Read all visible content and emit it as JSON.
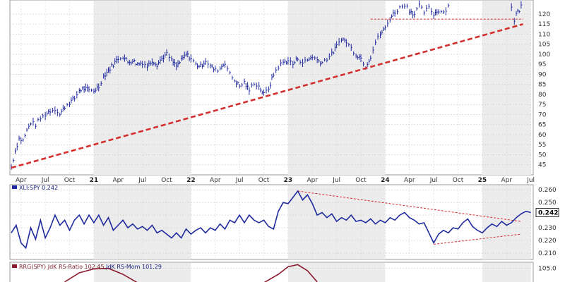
{
  "chart_data": [
    {
      "type": "ohlc",
      "panel": "price",
      "title": "",
      "x_start": "2020-04",
      "x_end": "2025-07",
      "y_ticks": [
        45,
        50,
        55,
        60,
        65,
        70,
        75,
        80,
        85,
        90,
        95,
        100,
        105,
        110,
        115,
        120
      ],
      "ylim": [
        40,
        127
      ],
      "x_tick_labels": [
        {
          "t": 0.1,
          "label": "Apr"
        },
        {
          "t": 0.35,
          "label": "Jul"
        },
        {
          "t": 0.6,
          "label": "Oct"
        },
        {
          "t": 0.85,
          "label": "21",
          "year": true
        },
        {
          "t": 1.1,
          "label": "Apr"
        },
        {
          "t": 1.35,
          "label": "Jul"
        },
        {
          "t": 1.6,
          "label": "Oct"
        },
        {
          "t": 1.85,
          "label": "22",
          "year": true
        },
        {
          "t": 2.1,
          "label": "Apr"
        },
        {
          "t": 2.35,
          "label": "Jul"
        },
        {
          "t": 2.6,
          "label": "Oct"
        },
        {
          "t": 2.85,
          "label": "23",
          "year": true
        },
        {
          "t": 3.1,
          "label": "Apr"
        },
        {
          "t": 3.35,
          "label": "Jul"
        },
        {
          "t": 3.6,
          "label": "Oct"
        },
        {
          "t": 3.85,
          "label": "24",
          "year": true
        },
        {
          "t": 4.1,
          "label": "Apr"
        },
        {
          "t": 4.35,
          "label": "Jul"
        },
        {
          "t": 4.6,
          "label": "Oct"
        },
        {
          "t": 4.85,
          "label": "25",
          "year": true
        },
        {
          "t": 5.1,
          "label": "Apr"
        },
        {
          "t": 5.35,
          "label": "Jul"
        }
      ],
      "shaded_years": [
        [
          0.85,
          1.85
        ],
        [
          2.85,
          3.85
        ],
        [
          4.85,
          5.35
        ]
      ],
      "closes": [
        [
          0.0,
          44
        ],
        [
          0.04,
          52
        ],
        [
          0.08,
          58
        ],
        [
          0.12,
          57
        ],
        [
          0.16,
          62
        ],
        [
          0.2,
          66
        ],
        [
          0.25,
          65
        ],
        [
          0.3,
          68
        ],
        [
          0.35,
          70
        ],
        [
          0.4,
          72
        ],
        [
          0.45,
          73
        ],
        [
          0.5,
          70
        ],
        [
          0.55,
          74
        ],
        [
          0.6,
          76
        ],
        [
          0.65,
          78
        ],
        [
          0.7,
          82
        ],
        [
          0.75,
          83
        ],
        [
          0.8,
          82
        ],
        [
          0.85,
          82
        ],
        [
          0.9,
          84
        ],
        [
          0.95,
          89
        ],
        [
          1.0,
          92
        ],
        [
          1.05,
          95
        ],
        [
          1.1,
          98
        ],
        [
          1.15,
          99
        ],
        [
          1.2,
          96
        ],
        [
          1.25,
          97
        ],
        [
          1.3,
          95
        ],
        [
          1.35,
          96
        ],
        [
          1.4,
          94
        ],
        [
          1.45,
          97
        ],
        [
          1.5,
          95
        ],
        [
          1.55,
          98
        ],
        [
          1.6,
          100
        ],
        [
          1.65,
          97
        ],
        [
          1.7,
          94
        ],
        [
          1.75,
          97
        ],
        [
          1.8,
          100
        ],
        [
          1.85,
          98
        ],
        [
          1.9,
          95
        ],
        [
          1.95,
          94
        ],
        [
          2.0,
          97
        ],
        [
          2.05,
          94
        ],
        [
          2.1,
          92
        ],
        [
          2.15,
          93
        ],
        [
          2.2,
          96
        ],
        [
          2.25,
          90
        ],
        [
          2.3,
          87
        ],
        [
          2.35,
          84
        ],
        [
          2.4,
          86
        ],
        [
          2.45,
          82
        ],
        [
          2.5,
          86
        ],
        [
          2.55,
          84
        ],
        [
          2.6,
          80
        ],
        [
          2.65,
          83
        ],
        [
          2.7,
          90
        ],
        [
          2.75,
          94
        ],
        [
          2.8,
          96
        ],
        [
          2.85,
          97
        ],
        [
          2.9,
          95
        ],
        [
          2.95,
          98
        ],
        [
          3.0,
          96
        ],
        [
          3.05,
          97
        ],
        [
          3.1,
          99
        ],
        [
          3.15,
          97
        ],
        [
          3.2,
          96
        ],
        [
          3.25,
          98
        ],
        [
          3.3,
          100
        ],
        [
          3.35,
          104
        ],
        [
          3.4,
          108
        ],
        [
          3.45,
          106
        ],
        [
          3.5,
          103
        ],
        [
          3.55,
          100
        ],
        [
          3.6,
          98
        ],
        [
          3.65,
          94
        ],
        [
          3.7,
          99
        ],
        [
          3.75,
          106
        ],
        [
          3.8,
          110
        ],
        [
          3.85,
          113
        ],
        [
          3.9,
          118
        ],
        [
          3.95,
          121
        ],
        [
          4.0,
          123
        ],
        [
          4.05,
          125
        ],
        [
          4.1,
          122
        ],
        [
          4.15,
          120
        ],
        [
          4.2,
          124
        ],
        [
          4.25,
          121
        ],
        [
          4.3,
          123
        ],
        [
          4.35,
          120
        ],
        [
          4.4,
          122
        ],
        [
          4.45,
          121
        ],
        [
          4.5,
          124
        ]
      ],
      "closes_2025": [
        [
          5.15,
          124
        ],
        [
          5.18,
          117
        ],
        [
          5.2,
          120
        ],
        [
          5.23,
          122
        ],
        [
          5.25,
          124
        ]
      ],
      "trendline": {
        "from": [
          0.0,
          43.5
        ],
        "to": [
          5.27,
          115
        ],
        "color": "#d32f2f"
      },
      "horizontal_level": {
        "value": 117.5,
        "from": 3.7,
        "to": 5.27,
        "color": "#d32f2f"
      }
    },
    {
      "type": "line",
      "panel": "ratio",
      "series": [
        {
          "name": "XLI:SPY 0.242",
          "color": "#1f2a9e",
          "points": [
            [
              0.0,
              0.226
            ],
            [
              0.05,
              0.232
            ],
            [
              0.1,
              0.218
            ],
            [
              0.15,
              0.214
            ],
            [
              0.2,
              0.23
            ],
            [
              0.25,
              0.221
            ],
            [
              0.3,
              0.236
            ],
            [
              0.35,
              0.222
            ],
            [
              0.4,
              0.23
            ],
            [
              0.45,
              0.24
            ],
            [
              0.5,
              0.232
            ],
            [
              0.55,
              0.236
            ],
            [
              0.6,
              0.228
            ],
            [
              0.65,
              0.236
            ],
            [
              0.7,
              0.24
            ],
            [
              0.75,
              0.233
            ],
            [
              0.8,
              0.24
            ],
            [
              0.85,
              0.234
            ],
            [
              0.9,
              0.24
            ],
            [
              0.95,
              0.232
            ],
            [
              1.0,
              0.238
            ],
            [
              1.05,
              0.228
            ],
            [
              1.1,
              0.232
            ],
            [
              1.15,
              0.236
            ],
            [
              1.2,
              0.23
            ],
            [
              1.25,
              0.233
            ],
            [
              1.3,
              0.229
            ],
            [
              1.35,
              0.231
            ],
            [
              1.4,
              0.228
            ],
            [
              1.45,
              0.232
            ],
            [
              1.5,
              0.226
            ],
            [
              1.55,
              0.228
            ],
            [
              1.6,
              0.225
            ],
            [
              1.65,
              0.222
            ],
            [
              1.7,
              0.226
            ],
            [
              1.75,
              0.222
            ],
            [
              1.8,
              0.229
            ],
            [
              1.85,
              0.225
            ],
            [
              1.9,
              0.228
            ],
            [
              1.95,
              0.23
            ],
            [
              2.0,
              0.226
            ],
            [
              2.05,
              0.23
            ],
            [
              2.1,
              0.228
            ],
            [
              2.15,
              0.233
            ],
            [
              2.2,
              0.229
            ],
            [
              2.25,
              0.236
            ],
            [
              2.3,
              0.234
            ],
            [
              2.35,
              0.24
            ],
            [
              2.4,
              0.234
            ],
            [
              2.45,
              0.24
            ],
            [
              2.5,
              0.236
            ],
            [
              2.55,
              0.234
            ],
            [
              2.6,
              0.236
            ],
            [
              2.65,
              0.231
            ],
            [
              2.7,
              0.229
            ],
            [
              2.75,
              0.243
            ],
            [
              2.8,
              0.25
            ],
            [
              2.85,
              0.249
            ],
            [
              2.9,
              0.254
            ],
            [
              2.95,
              0.259
            ],
            [
              3.0,
              0.252
            ],
            [
              3.05,
              0.256
            ],
            [
              3.1,
              0.249
            ],
            [
              3.15,
              0.24
            ],
            [
              3.2,
              0.242
            ],
            [
              3.25,
              0.238
            ],
            [
              3.3,
              0.241
            ],
            [
              3.35,
              0.235
            ],
            [
              3.4,
              0.238
            ],
            [
              3.45,
              0.236
            ],
            [
              3.5,
              0.24
            ],
            [
              3.55,
              0.235
            ],
            [
              3.6,
              0.236
            ],
            [
              3.65,
              0.234
            ],
            [
              3.7,
              0.237
            ],
            [
              3.75,
              0.233
            ],
            [
              3.8,
              0.236
            ],
            [
              3.85,
              0.234
            ],
            [
              3.9,
              0.238
            ],
            [
              3.95,
              0.236
            ],
            [
              4.0,
              0.24
            ],
            [
              4.05,
              0.242
            ],
            [
              4.1,
              0.238
            ],
            [
              4.15,
              0.236
            ],
            [
              4.2,
              0.233
            ],
            [
              4.25,
              0.234
            ],
            [
              4.3,
              0.226
            ],
            [
              4.35,
              0.218
            ],
            [
              4.4,
              0.225
            ],
            [
              4.45,
              0.228
            ],
            [
              4.5,
              0.226
            ],
            [
              4.55,
              0.23
            ],
            [
              4.6,
              0.229
            ],
            [
              4.65,
              0.234
            ],
            [
              4.7,
              0.237
            ],
            [
              4.75,
              0.231
            ],
            [
              4.8,
              0.228
            ],
            [
              4.85,
              0.226
            ],
            [
              4.9,
              0.23
            ],
            [
              4.95,
              0.233
            ],
            [
              5.0,
              0.231
            ],
            [
              5.05,
              0.235
            ],
            [
              5.1,
              0.232
            ],
            [
              5.15,
              0.234
            ],
            [
              5.2,
              0.238
            ],
            [
              5.25,
              0.241
            ],
            [
              5.3,
              0.243
            ],
            [
              5.35,
              0.242
            ]
          ]
        }
      ],
      "y_ticks": [
        0.21,
        0.22,
        0.23,
        0.24,
        0.25,
        0.26
      ],
      "y_tick_labels": [
        "0.210",
        "0.220",
        "0.230",
        "0.240",
        "0.250",
        "0.260"
      ],
      "ylim": [
        0.205,
        0.264
      ],
      "last_value": "0.242",
      "trend_upper": {
        "from": [
          2.95,
          0.259
        ],
        "to": [
          5.25,
          0.235
        ]
      },
      "trend_lower": {
        "from": [
          4.35,
          0.217
        ],
        "to": [
          5.25,
          0.225
        ]
      }
    },
    {
      "type": "line",
      "panel": "rrg",
      "series_label_parts": [
        "RRG(SPY) JdK RS-Ratio 102.45",
        "JdK RS-Mom 101.29"
      ],
      "y_ticks": [
        105.0
      ],
      "y_tick_labels": [
        "105.0"
      ],
      "ylim": [
        100.0,
        107.0
      ],
      "series": [
        {
          "name": "JdK RS-Ratio",
          "color": "#8b1a2e",
          "points": [
            [
              0.55,
              100.5
            ],
            [
              0.7,
              103.5
            ],
            [
              0.85,
              104.8
            ],
            [
              1.0,
              105.0
            ],
            [
              1.15,
              103.0
            ],
            [
              1.3,
              100.2
            ],
            [
              2.6,
              100.2
            ],
            [
              2.75,
              103.0
            ],
            [
              2.85,
              105.5
            ],
            [
              2.95,
              106.2
            ],
            [
              3.05,
              104.2
            ],
            [
              3.15,
              100.5
            ]
          ]
        }
      ]
    }
  ]
}
